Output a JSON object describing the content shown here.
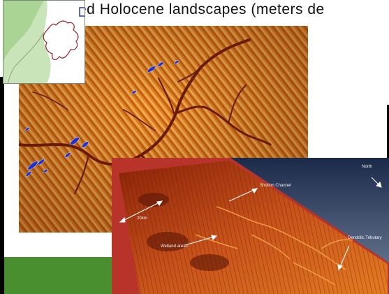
{
  "slide": {
    "title_text": "ed Holocene landscapes (meters de"
  },
  "oblique_view": {
    "labels": {
      "north": "North",
      "shotton": "Shotton Channel",
      "scale": "20km",
      "wetland": "Wetland areas",
      "dendritic": "Dendritic Tributary"
    }
  },
  "colors": {
    "title": "#111111",
    "green_band": "#4a8f2f",
    "map_orange": "#e07a1f",
    "map_dark": "#6a1a08",
    "frame_red": "#b8332a",
    "sky_dark": "#1c2a4a",
    "low_blue": "#2030d0",
    "inset_land": "#c9e4b8",
    "inset_boundary": "#9c1f2e"
  },
  "icons": {
    "north_arrow": "north-arrow-icon",
    "locator_box": "locator-box-icon"
  }
}
